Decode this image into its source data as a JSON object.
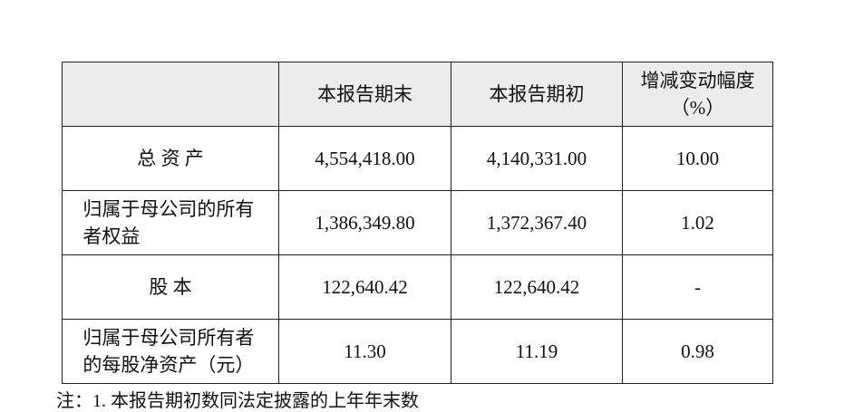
{
  "table": {
    "header": [
      "本报告期末",
      "本报告期初",
      "增减变动幅度（%）"
    ],
    "rows": [
      [
        "总 资 产",
        "4,554,418.00",
        "4,140,331.00",
        "10.00"
      ],
      [
        "归属于母公司的所有者权益",
        "1,386,349.80",
        "1,372,367.40",
        "1.02"
      ],
      [
        "股 本",
        "122,640.42",
        "122,640.42",
        "-"
      ],
      [
        "归属于母公司所有者的每股净资产（元）",
        "11.30",
        "11.19",
        "0.98"
      ]
    ]
  },
  "note": "注：1. 本报告期初数同法定披露的上年年末数"
}
